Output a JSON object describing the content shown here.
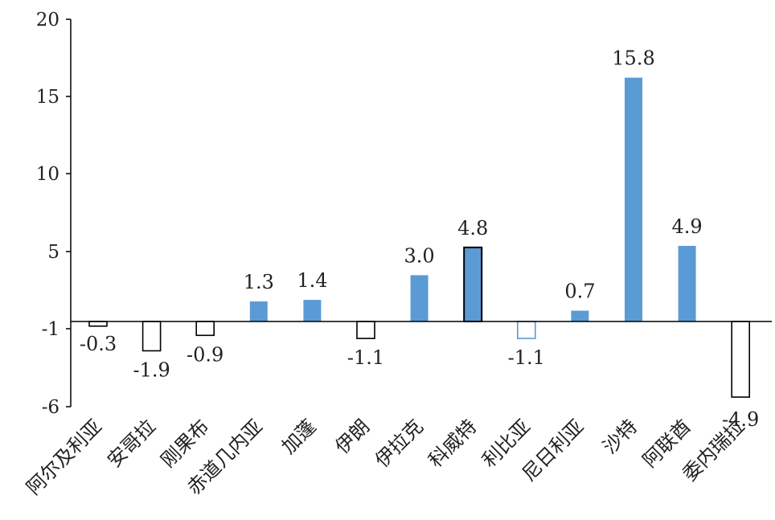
{
  "chart_data": {
    "type": "bar",
    "categories": [
      "阿尔及利亚",
      "安哥拉",
      "刚果布",
      "赤道几内亚",
      "加蓬",
      "伊朗",
      "伊拉克",
      "科威特",
      "利比亚",
      "尼日利亚",
      "沙特",
      "阿联酋",
      "委内瑞拉"
    ],
    "values": [
      -0.3,
      -1.9,
      -0.9,
      1.3,
      1.4,
      -1.1,
      3.0,
      4.8,
      -1.1,
      0.7,
      15.8,
      4.9,
      -4.9
    ],
    "value_labels": [
      "-0.3",
      "-1.9",
      "-0.9",
      "1.3",
      "1.4",
      "-1.1",
      "3.0",
      "4.8",
      "-1.1",
      "0.7",
      "15.8",
      "4.9",
      "-4.9"
    ],
    "bar_styles": [
      "outline",
      "outline",
      "outline",
      "filled",
      "filled",
      "outline",
      "filled",
      "filled-dark-border",
      "outline-blue",
      "filled",
      "filled",
      "filled",
      "outline"
    ],
    "yticks": [
      "20",
      "15",
      "10",
      "5",
      "-1",
      "-6"
    ],
    "ylim": [
      -6,
      20
    ],
    "xlabel": "",
    "ylabel": "",
    "title": "",
    "colors": {
      "fill": "#5B9BD5",
      "outline": "#000000",
      "outline_blue": "#5B9BD5",
      "axis": "#000000"
    }
  }
}
